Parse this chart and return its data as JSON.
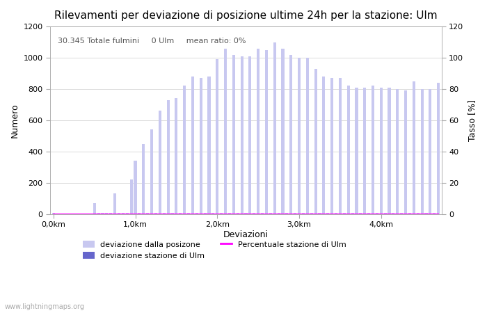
{
  "title": "Rilevamenti per deviazione di posizione ultime 24h per la stazione: Ulm",
  "subtitle": "30.345 Totale fulmini     0 Ulm     mean ratio: 0%",
  "xlabel": "Deviazioni",
  "ylabel_left": "Numero",
  "ylabel_right": "Tasso [%]",
  "watermark": "www.lightningmaps.org",
  "x_ticks_labels": [
    "0,0km",
    "1,0km",
    "2,0km",
    "3,0km",
    "4,0km"
  ],
  "x_ticks_pos": [
    0,
    20,
    40,
    60,
    80
  ],
  "ylim_left": [
    0,
    1200
  ],
  "ylim_right": [
    0,
    120
  ],
  "yticks_left": [
    0,
    200,
    400,
    600,
    800,
    1000,
    1200
  ],
  "yticks_right": [
    0,
    20,
    40,
    60,
    80,
    100,
    120
  ],
  "bar_color_light": "#c8c8f0",
  "bar_color_dark": "#6666cc",
  "line_color": "#ff00ff",
  "background_color": "#ffffff",
  "grid_color": "#cccccc",
  "bar_width": 0.7,
  "legend_labels": [
    "deviazione dalla posizone",
    "deviazione stazione di Ulm",
    "Percentuale stazione di Ulm"
  ],
  "heights": [
    5,
    2,
    2,
    2,
    3,
    2,
    2,
    2,
    2,
    2,
    70,
    5,
    5,
    5,
    5,
    130,
    5,
    5,
    5,
    220,
    340,
    5,
    450,
    5,
    540,
    5,
    660,
    5,
    730,
    5,
    740,
    5,
    820,
    5,
    880,
    5,
    870,
    5,
    880,
    5,
    990,
    5,
    1060,
    5,
    1020,
    5,
    1010,
    5,
    1010,
    5,
    1060,
    5,
    1050,
    5,
    1100,
    5,
    1060,
    5,
    1020,
    5,
    1000,
    5,
    1000,
    5,
    930,
    5,
    880,
    5,
    870,
    5,
    870,
    5,
    820,
    5,
    810,
    5,
    810,
    5,
    820,
    5,
    810,
    5,
    810,
    5,
    800,
    5,
    790,
    5,
    850,
    5,
    800,
    5,
    800,
    5,
    840
  ],
  "station_heights": [
    0,
    0,
    0,
    0,
    0,
    0,
    0,
    0,
    0,
    0,
    0,
    0,
    0,
    0,
    0,
    0,
    0,
    0,
    0,
    0,
    0,
    0,
    0,
    0,
    0,
    0,
    0,
    0,
    0,
    0,
    0,
    0,
    0,
    0,
    0,
    0,
    0,
    0,
    0,
    0,
    0,
    0,
    0,
    0,
    0,
    0,
    0,
    0,
    0,
    0,
    0,
    0,
    0,
    0,
    0,
    0,
    0,
    0,
    0,
    0,
    0,
    0,
    0,
    0,
    0,
    0,
    0,
    0,
    0,
    0,
    0,
    0,
    0,
    0,
    0,
    0,
    0,
    0,
    0,
    0,
    0,
    0,
    0,
    0,
    0,
    0,
    0,
    0,
    0,
    0,
    0,
    0,
    0
  ],
  "percentage_values": [
    0,
    0,
    0,
    0,
    0,
    0,
    0,
    0,
    0,
    0,
    0,
    0,
    0,
    0,
    0,
    0,
    0,
    0,
    0,
    0,
    0,
    0,
    0,
    0,
    0,
    0,
    0,
    0,
    0,
    0,
    0,
    0,
    0,
    0,
    0,
    0,
    0,
    0,
    0,
    0,
    0,
    0,
    0,
    0,
    0,
    0,
    0,
    0,
    0,
    0,
    0,
    0,
    0,
    0,
    0,
    0,
    0,
    0,
    0,
    0,
    0,
    0,
    0,
    0,
    0,
    0,
    0,
    0,
    0,
    0,
    0,
    0,
    0,
    0,
    0,
    0,
    0,
    0,
    0,
    0,
    0,
    0,
    0,
    0,
    0,
    0,
    0,
    0,
    0,
    0,
    0,
    0,
    0
  ]
}
